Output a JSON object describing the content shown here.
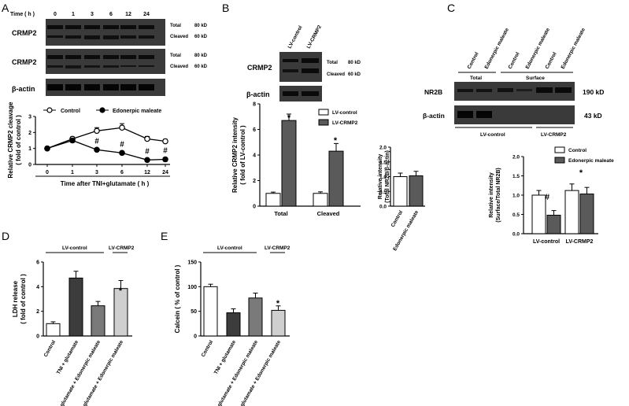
{
  "panels": {
    "A": {
      "letter": "A",
      "time_header": "Time ( h )",
      "time_points": [
        "0",
        "1",
        "3",
        "6",
        "12",
        "24"
      ],
      "blot1_label": "CRMP2",
      "blot2_label": "CRMP2",
      "actin_label": "β-actin",
      "band_total": "Total",
      "band_cleaved": "Cleaved",
      "kd80": "80 kD",
      "kd60": "60 kD"
    },
    "B": {
      "letter": "B",
      "lanes": [
        "LV-control",
        "LV-CRMP2"
      ],
      "blot_label": "CRMP2",
      "actin_label": "β-actin",
      "band_total": "Total",
      "band_cleaved": "Cleaved",
      "kd80": "80 kD",
      "kd60": "60 kD"
    },
    "C": {
      "letter": "C",
      "lanes": [
        "Control",
        "Edonerpic maleate",
        "Control",
        "Edonerpic maleate",
        "Control",
        "Edonerpic maleate"
      ],
      "group_total": "Total",
      "group_surface": "Surface",
      "nr2b_label": "NR2B",
      "actin_label": "β-actin",
      "kd190": "190 kD",
      "kd43": "43 kD",
      "lv_control": "LV-control",
      "lv_crmp2": "LV-CRMP2"
    },
    "D": {
      "letter": "D",
      "group_control": "LV-control",
      "group_crmp2": "LV-CRMP2"
    },
    "E": {
      "letter": "E",
      "group_control": "LV-control",
      "group_crmp2": "LV-CRMP2"
    }
  },
  "chart_data": [
    {
      "id": "A",
      "type": "line",
      "x": [
        "0",
        "1",
        "3",
        "6",
        "12",
        "24"
      ],
      "xlabel": "Time after TNI+glutamate ( h )",
      "ylabel": "Relative CRMP2 cleavage\n( fold of control )",
      "ylim": [
        0,
        3
      ],
      "yticks": [
        "0",
        "1",
        "2",
        "3"
      ],
      "series": [
        {
          "name": "Control",
          "values": [
            1.0,
            1.6,
            2.1,
            2.3,
            1.6,
            1.45
          ],
          "errors": [
            0.08,
            0.12,
            0.2,
            0.25,
            0.15,
            0.12
          ],
          "marker": "open"
        },
        {
          "name": "Edonerpic maleate",
          "values": [
            1.0,
            1.5,
            0.92,
            0.72,
            0.28,
            0.32
          ],
          "errors": [
            0.08,
            0.12,
            0.1,
            0.08,
            0.1,
            0.12
          ],
          "marker": "filled"
        }
      ],
      "annotations": [
        "#",
        "#",
        "#",
        "#"
      ],
      "legend": "top"
    },
    {
      "id": "B",
      "type": "bar",
      "categories": [
        "Total",
        "Cleaved"
      ],
      "ylabel": "Relative CRMP2 intensity\n( fold of LV-control )",
      "ylim": [
        0,
        8
      ],
      "yticks": [
        "0",
        "2",
        "4",
        "6",
        "8"
      ],
      "series": [
        {
          "name": "LV-control",
          "values": [
            1.0,
            1.0
          ],
          "errors": [
            0.1,
            0.12
          ]
        },
        {
          "name": "LV-CRMP2",
          "values": [
            6.7,
            4.3
          ],
          "errors": [
            0.5,
            0.6
          ]
        }
      ],
      "annotations": [
        "*",
        "*"
      ],
      "legend": "top-right"
    },
    {
      "id": "C1",
      "type": "bar",
      "categories": [
        "Control",
        "Edonerpic maleate"
      ],
      "values": [
        1.0,
        1.03
      ],
      "errors": [
        0.12,
        0.15
      ],
      "ylabel": "Relative intensity\n(Total NR2B/β-actin)",
      "ylim": [
        0,
        2
      ],
      "yticks": [
        "0.0",
        "0.5",
        "1.0",
        "1.5",
        "2.0"
      ]
    },
    {
      "id": "C2",
      "type": "bar",
      "categories": [
        "LV-control",
        "LV-CRMP2"
      ],
      "ylabel": "Relative intensity\n(Surface/Total NR2B)",
      "ylim": [
        0,
        2
      ],
      "yticks": [
        "0.0",
        "0.5",
        "1.0",
        "1.5",
        "2.0"
      ],
      "series": [
        {
          "name": "Control",
          "values": [
            1.0,
            1.12
          ],
          "errors": [
            0.12,
            0.17
          ]
        },
        {
          "name": "Edonerpic maleate",
          "values": [
            0.48,
            1.03
          ],
          "errors": [
            0.12,
            0.17
          ]
        }
      ],
      "annotations": [
        "#",
        "*"
      ],
      "legend": "top-right"
    },
    {
      "id": "D",
      "type": "bar",
      "categories": [
        "Control",
        "TNI + glutamate",
        "TNI + glutamate + Edonerpic maleate",
        "TNI + glutamate + Edonerpic maleate"
      ],
      "values": [
        1.0,
        4.7,
        2.45,
        3.85
      ],
      "errors": [
        0.15,
        0.55,
        0.35,
        0.65
      ],
      "ylabel": "LDH release\n( fold of control )",
      "ylim": [
        0,
        6
      ],
      "yticks": [
        "0",
        "2",
        "4",
        "6"
      ],
      "annotations": [
        "*"
      ]
    },
    {
      "id": "E",
      "type": "bar",
      "categories": [
        "Control",
        "TNI + glutamate",
        "TNI + glutamate + Edonerpic maleate",
        "TNI + glutamate + Edonerpic maleate"
      ],
      "values": [
        100,
        47,
        77,
        52
      ],
      "errors": [
        5,
        8,
        10,
        9
      ],
      "ylabel": "Calcein ( % of control )",
      "ylim": [
        0,
        150
      ],
      "yticks": [
        "0",
        "50",
        "100",
        "150"
      ],
      "annotations": [
        "*"
      ]
    }
  ]
}
